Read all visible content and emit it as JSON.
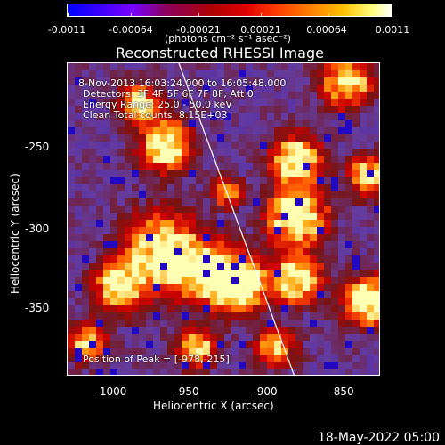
{
  "colorbar": {
    "ticks": [
      "-0.0011",
      "-0.00064",
      "-0.00021",
      "0.00021",
      "0.00064",
      "0.0011"
    ],
    "units": "(photons cm⁻² s⁻¹ asec⁻²)"
  },
  "title": "Reconstructed RHESSI Image",
  "info": {
    "time": "8-Nov-2013 16:03:24.000 to 16:05:48.000",
    "detectors": "Detectors: 3F 4F 5F 6F 7F 8F, Att 0",
    "energy": "Energy Range: 25.0 - 50.0 keV",
    "clean": "Clean      Total counts: 8.15E+03",
    "peak": "Position of Peak = [-978,-215]"
  },
  "axes": {
    "xlabel": "Heliocentric X (arcsec)",
    "ylabel": "Heliocentric Y (arcsec)",
    "xticks": [
      "-1000",
      "-950",
      "-900",
      "-850"
    ],
    "yticks": [
      "-250",
      "-300",
      "-350"
    ]
  },
  "footer": "18-May-2022 05:00"
}
